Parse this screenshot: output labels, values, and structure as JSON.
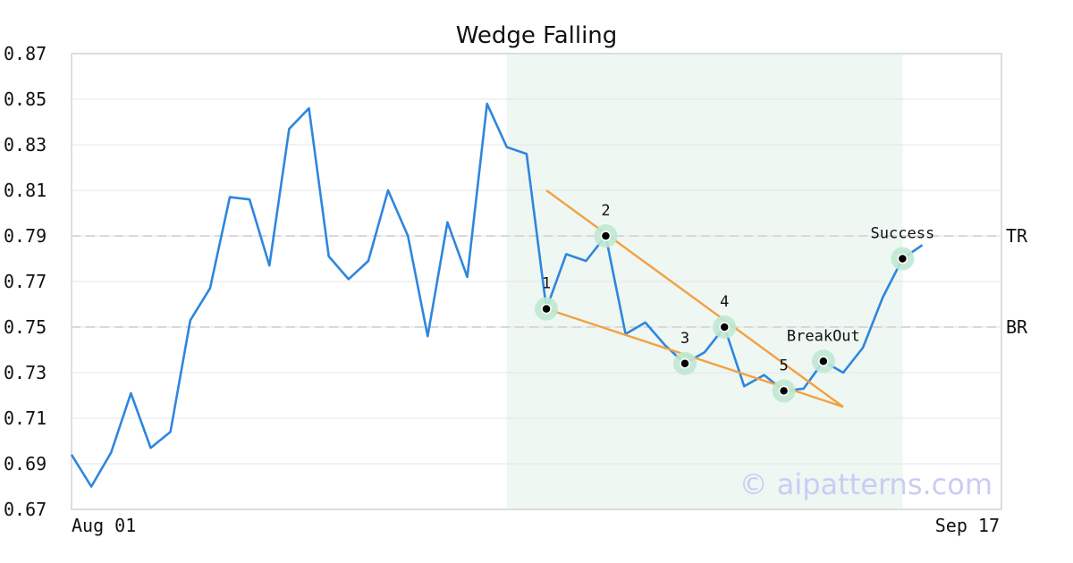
{
  "chart_data": {
    "type": "line",
    "title": "Wedge Falling",
    "xlabel": "",
    "ylabel": "",
    "ylim": [
      0.67,
      0.87
    ],
    "yticks": [
      "0.67",
      "0.69",
      "0.71",
      "0.73",
      "0.75",
      "0.77",
      "0.79",
      "0.81",
      "0.83",
      "0.85",
      "0.87"
    ],
    "xticks": [
      {
        "label": "Aug 01",
        "index": 0
      },
      {
        "label": "Sep 17",
        "index": 47
      }
    ],
    "grid": "horizontal",
    "series": [
      {
        "color": "#2e86de",
        "values": [
          0.694,
          0.68,
          0.695,
          0.721,
          0.697,
          0.704,
          0.753,
          0.767,
          0.807,
          0.806,
          0.777,
          0.837,
          0.846,
          0.781,
          0.771,
          0.779,
          0.81,
          0.79,
          0.746,
          0.796,
          0.772,
          0.848,
          0.829,
          0.826,
          0.758,
          0.782,
          0.779,
          0.79,
          0.747,
          0.752,
          0.742,
          0.734,
          0.739,
          0.75,
          0.724,
          0.729,
          0.722,
          0.723,
          0.735,
          0.73,
          0.741,
          0.763,
          0.78,
          0.786
        ]
      }
    ],
    "highlight_region": {
      "from_index": 22,
      "to_index": 42,
      "color": "#eef7f2"
    },
    "reference_lines": [
      {
        "label": "TR",
        "y": 0.79
      },
      {
        "label": "BR",
        "y": 0.75
      }
    ],
    "trendlines": [
      {
        "color": "#f4a040",
        "from": {
          "x": 24,
          "y": 0.81
        },
        "to": {
          "x": 39,
          "y": 0.715
        }
      },
      {
        "color": "#f4a040",
        "from": {
          "x": 24,
          "y": 0.758
        },
        "to": {
          "x": 39,
          "y": 0.715
        }
      }
    ],
    "markers": [
      {
        "label": "1",
        "x": 24,
        "y": 0.758,
        "label_pos": "above"
      },
      {
        "label": "2",
        "x": 27,
        "y": 0.79,
        "label_pos": "above"
      },
      {
        "label": "3",
        "x": 31,
        "y": 0.734,
        "label_pos": "above"
      },
      {
        "label": "4",
        "x": 33,
        "y": 0.75,
        "label_pos": "above"
      },
      {
        "label": "5",
        "x": 36,
        "y": 0.722,
        "label_pos": "above"
      },
      {
        "label": "BreakOut",
        "x": 38,
        "y": 0.735,
        "label_pos": "above"
      },
      {
        "label": "Success",
        "x": 42,
        "y": 0.78,
        "label_pos": "above"
      }
    ],
    "watermark": "© aipatterns.com",
    "colors": {
      "line": "#2e86de",
      "trend": "#f4a040",
      "marker_halo": "#bfe8d3",
      "reference": "#d8d8d8",
      "frame": "#dddddd"
    }
  }
}
